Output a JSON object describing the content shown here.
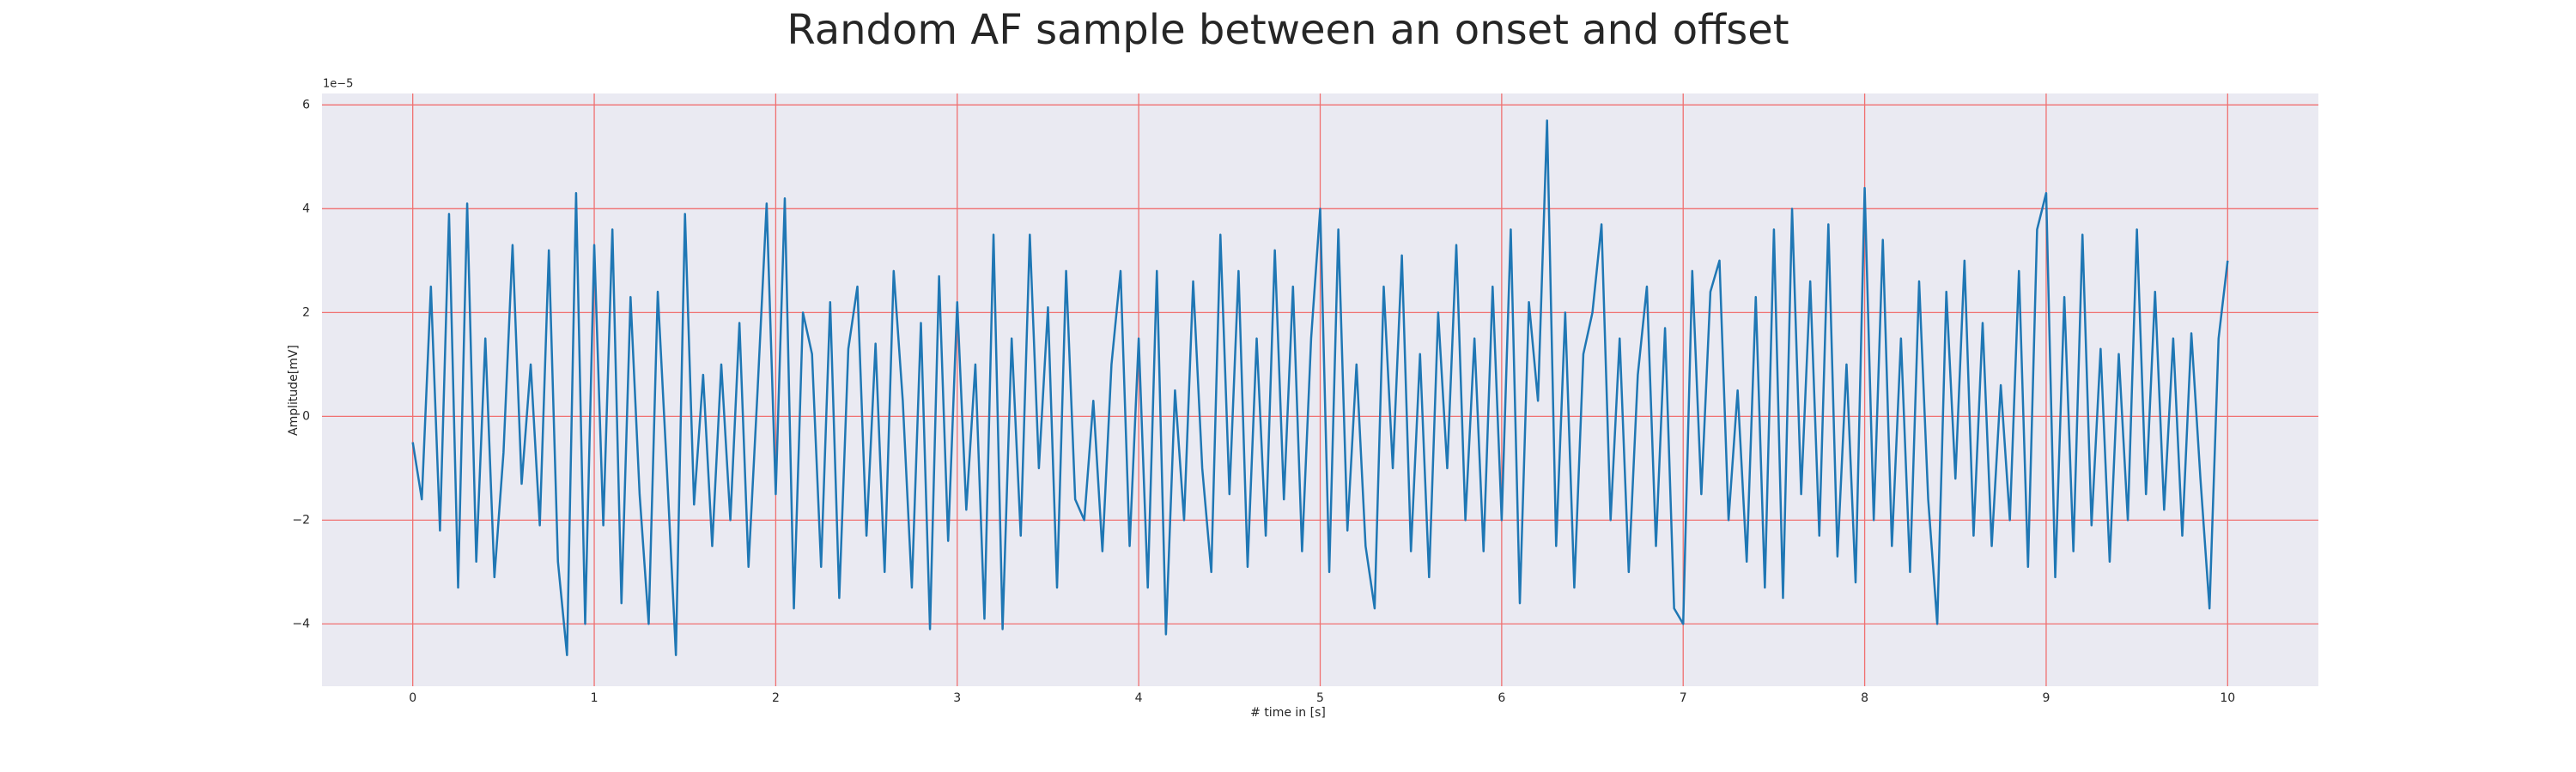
{
  "chart_data": {
    "type": "line",
    "title": "Random AF sample between an onset and offset",
    "xlabel": "# time in [s]",
    "ylabel": "Amplitude[mV]",
    "y_offset_text": "1e−5",
    "xlim": [
      -0.5,
      10.5
    ],
    "ylim": [
      -5.2,
      6.22
    ],
    "xticks": [
      0,
      1,
      2,
      3,
      4,
      5,
      6,
      7,
      8,
      9,
      10
    ],
    "yticks": [
      {
        "value": -4,
        "label": "−4"
      },
      {
        "value": -2,
        "label": "−2"
      },
      0,
      2,
      4,
      6
    ],
    "grid": true,
    "grid_color": "#f07070",
    "background": "#eaeaf2",
    "series": [
      {
        "color": "#1f77b4",
        "x": [
          0,
          0.05,
          0.1,
          0.15,
          0.2,
          0.25,
          0.3,
          0.35,
          0.4,
          0.45,
          0.5,
          0.55,
          0.6,
          0.65,
          0.7,
          0.75,
          0.8,
          0.85,
          0.9,
          0.95,
          1,
          1.05,
          1.1,
          1.15,
          1.2,
          1.25,
          1.3,
          1.35,
          1.4,
          1.45,
          1.5,
          1.55,
          1.6,
          1.65,
          1.7,
          1.75,
          1.8,
          1.85,
          1.9,
          1.95,
          2,
          2.05,
          2.1,
          2.15,
          2.2,
          2.25,
          2.3,
          2.35,
          2.4,
          2.45,
          2.5,
          2.55,
          2.6,
          2.65,
          2.7,
          2.75,
          2.8,
          2.85,
          2.9,
          2.95,
          3,
          3.05,
          3.1,
          3.15,
          3.2,
          3.25,
          3.3,
          3.35,
          3.4,
          3.45,
          3.5,
          3.55,
          3.6,
          3.65,
          3.7,
          3.75,
          3.8,
          3.85,
          3.9,
          3.95,
          4,
          4.05,
          4.1,
          4.15,
          4.2,
          4.25,
          4.3,
          4.35,
          4.4,
          4.45,
          4.5,
          4.55,
          4.6,
          4.65,
          4.7,
          4.75,
          4.8,
          4.85,
          4.9,
          4.95,
          5,
          5.05,
          5.1,
          5.15,
          5.2,
          5.25,
          5.3,
          5.35,
          5.4,
          5.45,
          5.5,
          5.55,
          5.6,
          5.65,
          5.7,
          5.75,
          5.8,
          5.85,
          5.9,
          5.95,
          6,
          6.05,
          6.1,
          6.15,
          6.2,
          6.25,
          6.3,
          6.35,
          6.4,
          6.45,
          6.5,
          6.55,
          6.6,
          6.65,
          6.7,
          6.75,
          6.8,
          6.85,
          6.9,
          6.95,
          7,
          7.05,
          7.1,
          7.15,
          7.2,
          7.25,
          7.3,
          7.35,
          7.4,
          7.45,
          7.5,
          7.55,
          7.6,
          7.65,
          7.7,
          7.75,
          7.8,
          7.85,
          7.9,
          7.95,
          8,
          8.05,
          8.1,
          8.15,
          8.2,
          8.25,
          8.3,
          8.35,
          8.4,
          8.45,
          8.5,
          8.55,
          8.6,
          8.65,
          8.7,
          8.75,
          8.8,
          8.85,
          8.9,
          8.95,
          9,
          9.05,
          9.1,
          9.15,
          9.2,
          9.25,
          9.3,
          9.35,
          9.4,
          9.45,
          9.5,
          9.55,
          9.6,
          9.65,
          9.7,
          9.75,
          9.8,
          9.85,
          9.9,
          9.95,
          10
        ],
        "values": [
          -0.5,
          -1.6,
          2.5,
          -2.2,
          3.9,
          -3.3,
          4.1,
          -2.8,
          1.5,
          -3.1,
          -0.7,
          3.3,
          -1.3,
          1.0,
          -2.1,
          3.2,
          -2.8,
          -4.6,
          4.3,
          -4.0,
          3.3,
          -2.1,
          3.6,
          -3.6,
          2.3,
          -1.5,
          -4.0,
          2.4,
          -1.0,
          -4.6,
          3.9,
          -1.7,
          0.8,
          -2.5,
          1.0,
          -2.0,
          1.8,
          -2.9,
          0.5,
          4.1,
          -1.5,
          4.2,
          -3.7,
          2.0,
          1.2,
          -2.9,
          2.2,
          -3.5,
          1.3,
          2.5,
          -2.3,
          1.4,
          -3.0,
          2.8,
          0.3,
          -3.3,
          1.8,
          -4.1,
          2.7,
          -2.4,
          2.2,
          -1.8,
          1.0,
          -3.9,
          3.5,
          -4.1,
          1.5,
          -2.3,
          3.5,
          -1.0,
          2.1,
          -3.3,
          2.8,
          -1.6,
          -2.0,
          0.3,
          -2.6,
          1.0,
          2.8,
          -2.5,
          1.5,
          -3.3,
          2.8,
          -4.2,
          0.5,
          -2.0,
          2.6,
          -1.0,
          -3.0,
          3.5,
          -1.5,
          2.8,
          -2.9,
          1.5,
          -2.3,
          3.2,
          -1.6,
          2.5,
          -2.6,
          1.5,
          4.0,
          -3.0,
          3.6,
          -2.2,
          1.0,
          -2.5,
          -3.7,
          2.5,
          -1.0,
          3.1,
          -2.6,
          1.2,
          -3.1,
          2.0,
          -1.0,
          3.3,
          -2.0,
          1.5,
          -2.6,
          2.5,
          -2.0,
          3.6,
          -3.6,
          2.2,
          0.3,
          5.7,
          -2.5,
          2.0,
          -3.3,
          1.2,
          2.0,
          3.7,
          -2.0,
          1.5,
          -3.0,
          0.8,
          2.5,
          -2.5,
          1.7,
          -3.7,
          -4.0,
          2.8,
          -1.5,
          2.4,
          3.0,
          -2.0,
          0.5,
          -2.8,
          2.3,
          -3.3,
          3.6,
          -3.5,
          4.0,
          -1.5,
          2.6,
          -2.3,
          3.7,
          -2.7,
          1.0,
          -3.2,
          4.4,
          -2.0,
          3.4,
          -2.5,
          1.5,
          -3.0,
          2.6,
          -1.6,
          -4.0,
          2.4,
          -1.2,
          3.0,
          -2.3,
          1.8,
          -2.5,
          0.6,
          -2.0,
          2.8,
          -2.9,
          3.6,
          4.3,
          -3.1,
          2.3,
          -2.6,
          3.5,
          -2.1,
          1.3,
          -2.8,
          1.2,
          -2.0,
          3.6,
          -1.5,
          2.4,
          -1.8,
          1.5,
          -2.3,
          1.6,
          -1.2,
          -3.7,
          1.5,
          3.0
        ]
      }
    ]
  }
}
